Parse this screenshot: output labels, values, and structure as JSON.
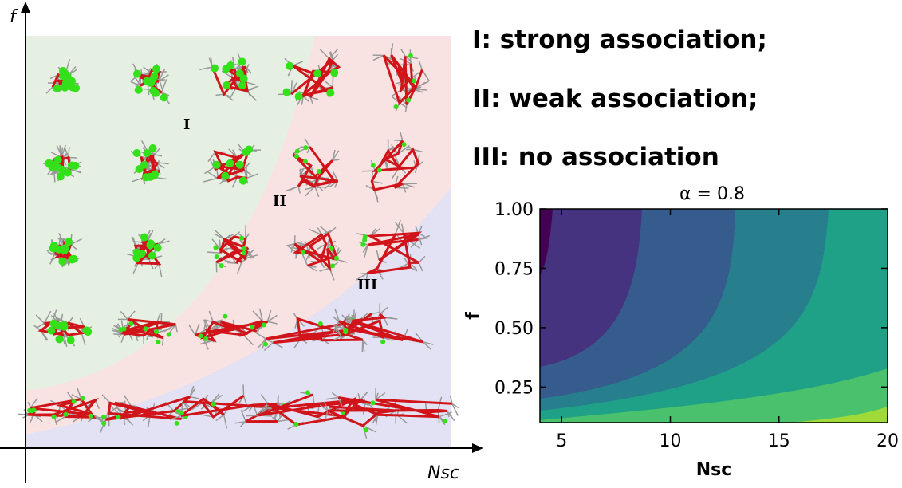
{
  "phase_diagram": {
    "x_label": "Nsc",
    "y_label": "f",
    "regions": [
      "I",
      "II",
      "III"
    ]
  },
  "legend": [
    "I: strong association;",
    "II: weak association;",
    "III: no association"
  ],
  "chart_data": {
    "type": "contour",
    "title": "α = 0.8",
    "x_label": "Nsc",
    "y_label": "f",
    "xlim": [
      4,
      20
    ],
    "ylim": [
      0.1,
      1.0
    ],
    "xticks": [
      5,
      10,
      15,
      20
    ],
    "yticks": [
      {
        "value": 1.0,
        "label": "1.00"
      },
      {
        "value": 0.75,
        "label": "0.75"
      },
      {
        "value": 0.5,
        "label": "0.50"
      },
      {
        "value": 0.25,
        "label": "0.25"
      }
    ]
  }
}
